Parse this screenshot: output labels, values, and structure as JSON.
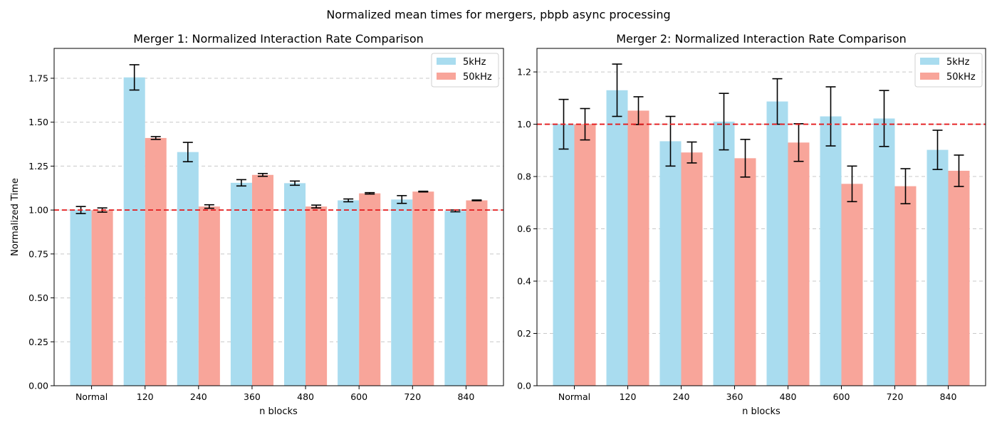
{
  "figure": {
    "suptitle": "Normalized mean times for mergers, pbpb async processing"
  },
  "colors": {
    "series_5khz": "#a9dcef",
    "series_50khz": "#f8a59a",
    "reference_line": "#e41a1c",
    "grid": "#c8c8c8",
    "error_bar": "#000000"
  },
  "chart_data": [
    {
      "type": "bar",
      "title": "Merger 1: Normalized Interaction Rate Comparison",
      "xlabel": "n blocks",
      "ylabel": "Normalized Time",
      "categories": [
        "Normal",
        "120",
        "240",
        "360",
        "480",
        "600",
        "720",
        "840"
      ],
      "ylim": [
        0,
        1.92
      ],
      "yticks": [
        "0.00",
        "0.25",
        "0.50",
        "0.75",
        "1.00",
        "1.25",
        "1.50",
        "1.75"
      ],
      "reference_line": 1.0,
      "grid": "horizontal dashed",
      "legend": "top-right",
      "series": [
        {
          "name": "5kHz",
          "values": [
            1.0,
            1.755,
            1.33,
            1.155,
            1.153,
            1.055,
            1.06,
            0.995
          ],
          "errors": [
            0.02,
            0.072,
            0.055,
            0.018,
            0.012,
            0.008,
            0.022,
            0.005
          ]
        },
        {
          "name": "50kHz",
          "values": [
            1.0,
            1.41,
            1.02,
            1.2,
            1.02,
            1.095,
            1.105,
            1.055
          ],
          "errors": [
            0.012,
            0.008,
            0.01,
            0.008,
            0.008,
            0.004,
            0.002,
            0.002
          ]
        }
      ]
    },
    {
      "type": "bar",
      "title": "Merger 2: Normalized Interaction Rate Comparison",
      "xlabel": "n blocks",
      "ylabel": "",
      "categories": [
        "Normal",
        "120",
        "240",
        "360",
        "480",
        "600",
        "720",
        "840"
      ],
      "ylim": [
        0,
        1.29
      ],
      "yticks": [
        "0.0",
        "0.2",
        "0.4",
        "0.6",
        "0.8",
        "1.0",
        "1.2"
      ],
      "reference_line": 1.0,
      "grid": "horizontal dashed",
      "legend": "top-right",
      "series": [
        {
          "name": "5kHz",
          "values": [
            1.0,
            1.13,
            0.935,
            1.01,
            1.087,
            1.03,
            1.022,
            0.902
          ],
          "errors": [
            0.095,
            0.1,
            0.095,
            0.108,
            0.087,
            0.113,
            0.107,
            0.075
          ]
        },
        {
          "name": "50kHz",
          "values": [
            1.0,
            1.052,
            0.892,
            0.87,
            0.93,
            0.772,
            0.763,
            0.822
          ],
          "errors": [
            0.06,
            0.053,
            0.04,
            0.072,
            0.072,
            0.068,
            0.067,
            0.06
          ]
        }
      ]
    }
  ]
}
